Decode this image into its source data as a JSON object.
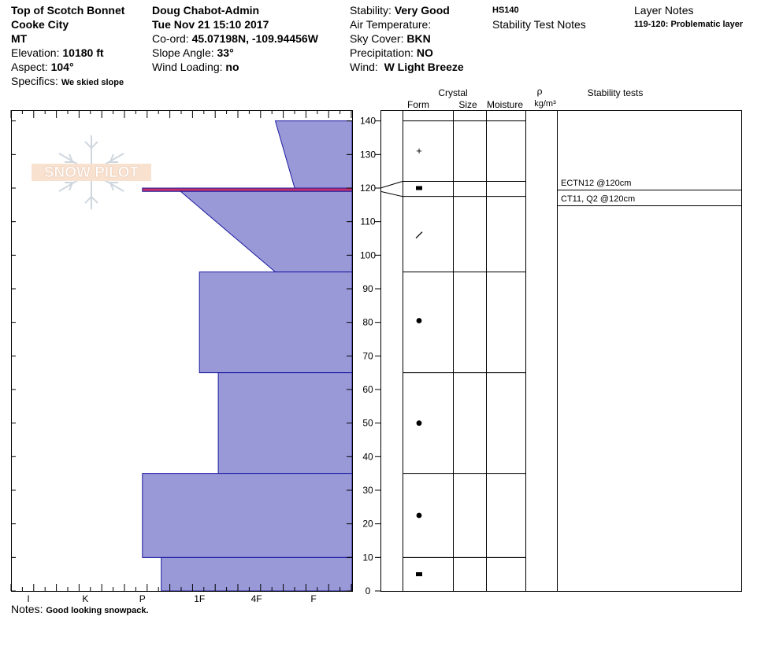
{
  "header": {
    "location": "Top of Scotch Bonnet",
    "range": "Cooke City",
    "state": "MT",
    "elevation_label": "Elevation:",
    "elevation": "10180 ft",
    "aspect_label": "Aspect:",
    "aspect": "104°",
    "specifics_label": "Specifics:",
    "specifics": "We skied slope",
    "observer": "Doug Chabot-Admin",
    "datetime": "Tue Nov 21 15:10 2017",
    "coord_label": "Co-ord:",
    "coord": "45.07198N, -109.94456W",
    "slope_label": "Slope Angle:",
    "slope": "33°",
    "wind_loading_label": "Wind Loading:",
    "wind_loading": "no",
    "stability_label": "Stability:",
    "stability": "Very Good",
    "air_temp_label": "Air Temperature:",
    "sky_label": "Sky Cover:",
    "sky": "BKN",
    "precip_label": "Precipitation:",
    "precip": "NO",
    "wind_label": "Wind:",
    "wind": "W Light Breeze",
    "hs": "HS140",
    "stability_test_notes": "Stability Test Notes",
    "layer_notes_title": "Layer Notes",
    "layer_note": "119-120: Problematic layer"
  },
  "columns": {
    "crystal": "Crystal",
    "form": "Form",
    "size": "Size",
    "moisture": "Moisture",
    "rho": "ρ",
    "density_unit": "kg/m³",
    "stability_tests": "Stability tests"
  },
  "notes_label": "Notes:",
  "notes": "Good looking snowpack.",
  "watermark": "SNOW PILOT",
  "chart_data": {
    "type": "area",
    "hardness_labels": [
      "I",
      "K",
      "P",
      "1F",
      "4F",
      "F"
    ],
    "height_ticks": [
      0,
      10,
      20,
      30,
      40,
      50,
      60,
      70,
      80,
      90,
      100,
      110,
      120,
      130,
      140
    ],
    "ylim": [
      0,
      140
    ],
    "layers": [
      {
        "bottom": 120,
        "top": 140,
        "hardness_bottom": "F+",
        "hardness_top": "4F-",
        "form": "+"
      },
      {
        "bottom": 119,
        "top": 120,
        "hardness": "P",
        "form": "■",
        "problematic": true
      },
      {
        "bottom": 95,
        "top": 119,
        "hardness_bottom": "4F-",
        "hardness_top": "1F+",
        "form": "⁄"
      },
      {
        "bottom": 65,
        "top": 95,
        "hardness": "1F",
        "form": "●"
      },
      {
        "bottom": 35,
        "top": 65,
        "hardness": "1F-",
        "form": "●"
      },
      {
        "bottom": 10,
        "top": 35,
        "hardness": "P",
        "form": "●"
      },
      {
        "bottom": 0,
        "top": 10,
        "hardness": "P-",
        "form": "■"
      }
    ],
    "form_symbol_heights": [
      131,
      120,
      106,
      80.5,
      50,
      22.5,
      5
    ],
    "stability_tests": [
      {
        "text": "ECTN12 @120cm",
        "height": 120
      },
      {
        "text": "CT11, Q2 @120cm",
        "height": 120
      }
    ]
  },
  "colors": {
    "profile_fill": "#9a99d8",
    "profile_stroke": "#1a1aa0",
    "problem_layer": "#c0306a"
  }
}
